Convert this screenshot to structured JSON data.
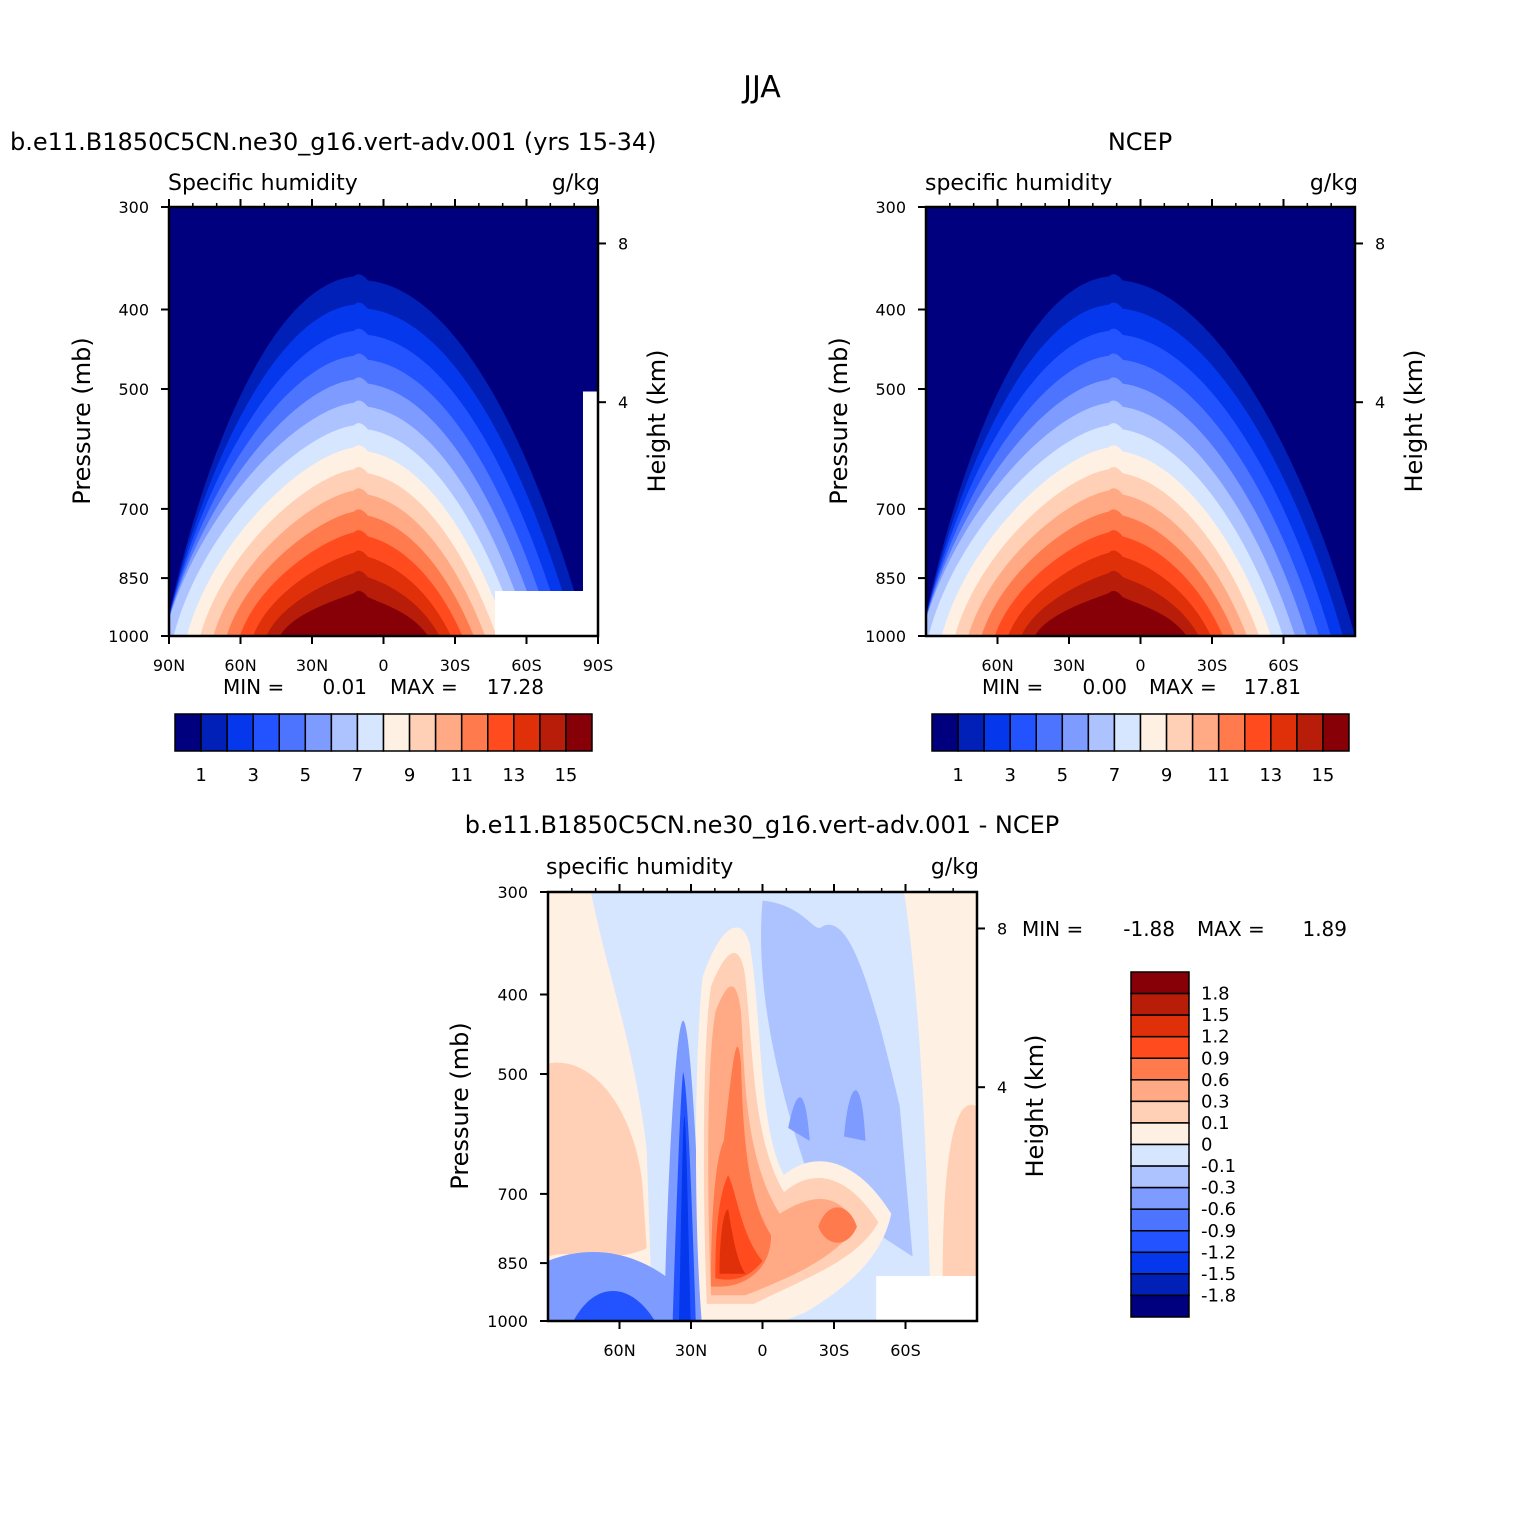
{
  "page_title": "JJA",
  "colors": {
    "model_obs_levels": [
      "#00007f",
      "#0020b8",
      "#0537ec",
      "#2352ff",
      "#4d74ff",
      "#7e9bff",
      "#adc3ff",
      "#d6e6ff",
      "#fff0e4",
      "#ffd0b5",
      "#ffaa85",
      "#ff7b4d",
      "#ff4b1e",
      "#e0300a",
      "#b81d0a",
      "#870007"
    ],
    "diff_levels": [
      "#00007f",
      "#0020b8",
      "#0537ec",
      "#2352ff",
      "#4d74ff",
      "#7e9bff",
      "#adc3ff",
      "#d6e6ff",
      "#fff0e4",
      "#ffd0b5",
      "#ffaa85",
      "#ff7b4d",
      "#ff4b1e",
      "#e0300a",
      "#b81d0a",
      "#870007"
    ]
  },
  "chart_data": [
    {
      "type": "heatmap",
      "title": "b.e11.B1850C5CN.ne30_g16.vert-adv.001 (yrs 15-34)",
      "left_string": "Specific humidity",
      "right_string": "g/kg",
      "ylabel": "Pressure (mb)",
      "ylabel_right": "Height (km)",
      "x_ticks": [
        "90N",
        "60N",
        "30N",
        "0",
        "30S",
        "60S",
        "90S"
      ],
      "y_ticks": [
        "300",
        "400",
        "500",
        "700",
        "850",
        "1000"
      ],
      "right_ticks": [
        "8",
        "4"
      ],
      "stats": {
        "min_label": "MIN =",
        "min": "0.01",
        "max_label": "MAX =",
        "max": "17.28"
      },
      "colorbar_labels": [
        "1",
        "3",
        "5",
        "7",
        "9",
        "11",
        "13",
        "15"
      ],
      "ylim": [
        1000,
        300
      ],
      "xlim": [
        "90N",
        "90S"
      ]
    },
    {
      "type": "heatmap",
      "title": "NCEP",
      "left_string": "specific humidity",
      "right_string": "g/kg",
      "ylabel": "Pressure (mb)",
      "ylabel_right": "Height (km)",
      "x_ticks": [
        "60N",
        "30N",
        "0",
        "30S",
        "60S"
      ],
      "y_ticks": [
        "300",
        "400",
        "500",
        "700",
        "850",
        "1000"
      ],
      "right_ticks": [
        "8",
        "4"
      ],
      "stats": {
        "min_label": "MIN =",
        "min": "0.00",
        "max_label": "MAX =",
        "max": "17.81"
      },
      "colorbar_labels": [
        "1",
        "3",
        "5",
        "7",
        "9",
        "11",
        "13",
        "15"
      ],
      "ylim": [
        1000,
        300
      ]
    },
    {
      "type": "heatmap",
      "title": "b.e11.B1850C5CN.ne30_g16.vert-adv.001 - NCEP",
      "left_string": "specific humidity",
      "right_string": "g/kg",
      "ylabel": "Pressure (mb)",
      "ylabel_right": "Height (km)",
      "x_ticks": [
        "60N",
        "30N",
        "0",
        "30S",
        "60S"
      ],
      "y_ticks": [
        "300",
        "400",
        "500",
        "700",
        "850",
        "1000"
      ],
      "right_ticks": [
        "8",
        "4"
      ],
      "stats": {
        "min_label": "MIN =",
        "min": "-1.88",
        "max_label": "MAX =",
        "max": "1.89"
      },
      "colorbar_labels": [
        "1.8",
        "1.5",
        "1.2",
        "0.9",
        "0.6",
        "0.3",
        "0.1",
        "0",
        "-0.1",
        "-0.3",
        "-0.6",
        "-0.9",
        "-1.2",
        "-1.5",
        "-1.8"
      ],
      "ylim": [
        1000,
        300
      ]
    }
  ]
}
